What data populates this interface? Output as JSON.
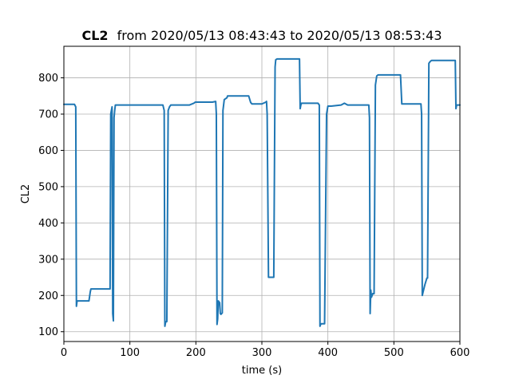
{
  "chart_data": {
    "type": "line",
    "title_bold": "CL2",
    "title_rest": "from 2020/05/13 08:43:43 to 2020/05/13 08:53:43",
    "xlabel": "time (s)",
    "ylabel": "CL2",
    "xlim": [
      0,
      600
    ],
    "ylim": [
      73,
      887
    ],
    "xticks": [
      0,
      100,
      200,
      300,
      400,
      500,
      600
    ],
    "yticks": [
      100,
      200,
      300,
      400,
      500,
      600,
      700,
      800
    ],
    "grid": true,
    "color": "#1f77b4",
    "series": [
      {
        "x": [
          0,
          16,
          18,
          19,
          20,
          22,
          38,
          40,
          41,
          43,
          70,
          71,
          72,
          73,
          74,
          75,
          76,
          77,
          78,
          80,
          100,
          150,
          152,
          153,
          154,
          155,
          156,
          158,
          160,
          162,
          164,
          190,
          197,
          199,
          200,
          205,
          215,
          225,
          230,
          231,
          232,
          233,
          234,
          236,
          237,
          238,
          240,
          241,
          243,
          247,
          248,
          250,
          255,
          280,
          283,
          285,
          300,
          306,
          307,
          308,
          310,
          318,
          320,
          321,
          323,
          345,
          357,
          358,
          359,
          360,
          362,
          385,
          387,
          388,
          389,
          390,
          395,
          398,
          400,
          402,
          405,
          420,
          425,
          430,
          435,
          440,
          462,
          463,
          464,
          465,
          466,
          467,
          468,
          470,
          472,
          474,
          476,
          490,
          510,
          512,
          514,
          516,
          540,
          541,
          542,
          543,
          545,
          547,
          550,
          551,
          553,
          555,
          557,
          565,
          570,
          592,
          593,
          594,
          595,
          600
        ],
        "y": [
          727,
          727,
          720,
          170,
          185,
          185,
          185,
          210,
          218,
          218,
          218,
          700,
          710,
          720,
          150,
          130,
          690,
          710,
          725,
          725,
          725,
          725,
          710,
          115,
          125,
          128,
          128,
          710,
          720,
          725,
          725,
          725,
          730,
          733,
          733,
          733,
          733,
          733,
          735,
          700,
          120,
          135,
          185,
          180,
          150,
          148,
          152,
          710,
          740,
          745,
          750,
          750,
          750,
          750,
          732,
          728,
          728,
          733,
          735,
          700,
          250,
          250,
          830,
          850,
          852,
          852,
          852,
          715,
          725,
          730,
          730,
          730,
          725,
          115,
          120,
          122,
          122,
          700,
          722,
          722,
          722,
          725,
          730,
          725,
          725,
          725,
          725,
          690,
          150,
          215,
          195,
          200,
          205,
          205,
          780,
          805,
          808,
          808,
          808,
          728,
          728,
          728,
          728,
          728,
          700,
          200,
          215,
          230,
          248,
          248,
          840,
          845,
          848,
          848,
          848,
          848,
          848,
          715,
          725,
          725
        ]
      }
    ]
  }
}
